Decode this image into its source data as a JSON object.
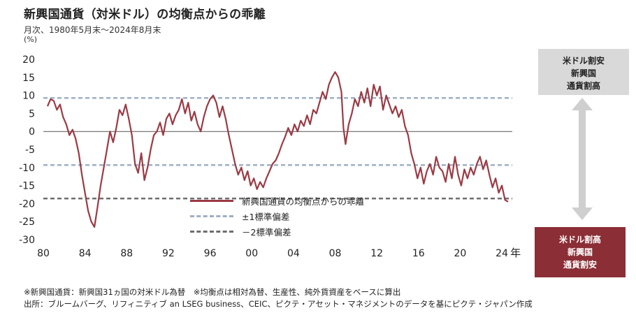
{
  "title": "新興国通貨（対米ドル）の均衡点からの乖離",
  "subtitle": "月次、1980年5月末～2024年8月末",
  "unit": "(%)",
  "legend": {
    "main": "新興国通貨の均衡点からの乖離",
    "sd1": "±1標準偏差",
    "sd2": "－2標準偏差"
  },
  "right_top": [
    "米ドル割安",
    "新興国",
    "通貨割高"
  ],
  "right_bottom": [
    "米ドル割高",
    "新興国",
    "通貨割安"
  ],
  "x_axis_suffix": "年",
  "footnotes": [
    "※新興国通貨：新興国31ヵ国の対米ドル為替　※均衡点は相対為替、生産性、純外貨資産をベースに算出",
    "出所：ブルームバーグ、リフィニティブ an LSEG business、CEIC、ピクテ・アセット・マネジメントのデータを基にピクテ・ジャパン作成"
  ],
  "colors": {
    "series": "#9b3a44",
    "sd1": "#9fb0c4",
    "sd2": "#6e6e6e",
    "top_box": "#d9d9d9",
    "bottom_box": "#8b2e36",
    "arrow": "#cfcfcf"
  },
  "chart_data": {
    "type": "line",
    "ylim": [
      -30,
      20
    ],
    "yticks": [
      20,
      15,
      10,
      5,
      0,
      -5,
      -10,
      -15,
      -20,
      -25,
      -30
    ],
    "xlim": [
      1980.0,
      2025.0
    ],
    "xticks": [
      {
        "value": 1980,
        "label": "80"
      },
      {
        "value": 1984,
        "label": "84"
      },
      {
        "value": 1988,
        "label": "88"
      },
      {
        "value": 1992,
        "label": "92"
      },
      {
        "value": 1996,
        "label": "96"
      },
      {
        "value": 2000,
        "label": "00"
      },
      {
        "value": 2004,
        "label": "04"
      },
      {
        "value": 2008,
        "label": "08"
      },
      {
        "value": 2012,
        "label": "12"
      },
      {
        "value": 2016,
        "label": "16"
      },
      {
        "value": 2020,
        "label": "20"
      },
      {
        "value": 2024,
        "label": "24"
      }
    ],
    "reference_lines": [
      {
        "name": "±1標準偏差",
        "y": 9.3
      },
      {
        "name": "±1標準偏差",
        "y": -9.3
      },
      {
        "name": "－2標準偏差",
        "y": -18.6
      }
    ],
    "series": [
      {
        "name": "新興国通貨の均衡点からの乖離",
        "x": [
          1980.4,
          1980.7,
          1981.0,
          1981.3,
          1981.6,
          1981.9,
          1982.2,
          1982.5,
          1982.8,
          1983.1,
          1983.4,
          1983.7,
          1984.0,
          1984.3,
          1984.6,
          1984.9,
          1985.2,
          1985.5,
          1985.8,
          1986.1,
          1986.4,
          1986.7,
          1987.0,
          1987.3,
          1987.6,
          1987.9,
          1988.2,
          1988.5,
          1988.8,
          1989.1,
          1989.4,
          1989.7,
          1990.0,
          1990.3,
          1990.6,
          1990.9,
          1991.2,
          1991.5,
          1991.8,
          1992.1,
          1992.4,
          1992.7,
          1993.0,
          1993.3,
          1993.6,
          1993.9,
          1994.2,
          1994.5,
          1994.8,
          1995.1,
          1995.4,
          1995.7,
          1996.0,
          1996.3,
          1996.6,
          1996.9,
          1997.2,
          1997.5,
          1997.8,
          1998.1,
          1998.4,
          1998.7,
          1999.0,
          1999.3,
          1999.6,
          1999.9,
          2000.2,
          2000.5,
          2000.8,
          2001.1,
          2001.4,
          2001.7,
          2002.0,
          2002.3,
          2002.6,
          2002.9,
          2003.2,
          2003.5,
          2003.8,
          2004.1,
          2004.4,
          2004.7,
          2005.0,
          2005.3,
          2005.6,
          2005.9,
          2006.2,
          2006.5,
          2006.8,
          2007.1,
          2007.4,
          2007.7,
          2008.0,
          2008.3,
          2008.6,
          2008.8,
          2009.0,
          2009.3,
          2009.6,
          2009.9,
          2010.2,
          2010.5,
          2010.8,
          2011.1,
          2011.4,
          2011.7,
          2012.0,
          2012.3,
          2012.6,
          2012.9,
          2013.2,
          2013.5,
          2013.8,
          2014.1,
          2014.4,
          2014.7,
          2015.0,
          2015.3,
          2015.6,
          2015.9,
          2016.2,
          2016.5,
          2016.8,
          2017.1,
          2017.4,
          2017.7,
          2018.0,
          2018.3,
          2018.6,
          2018.9,
          2019.2,
          2019.5,
          2019.8,
          2020.1,
          2020.4,
          2020.7,
          2021.0,
          2021.3,
          2021.6,
          2021.9,
          2022.2,
          2022.5,
          2022.8,
          2023.1,
          2023.4,
          2023.7,
          2024.0,
          2024.3,
          2024.6
        ],
        "values": [
          7.0,
          9.0,
          8.5,
          6.0,
          7.5,
          4.0,
          2.0,
          -1.0,
          0.5,
          -2.0,
          -6.0,
          -12.0,
          -17.0,
          -22.0,
          -25.0,
          -26.5,
          -21.0,
          -15.0,
          -10.0,
          -5.0,
          0.0,
          -3.0,
          1.0,
          6.0,
          4.5,
          7.5,
          3.5,
          -1.0,
          -9.0,
          -11.5,
          -6.0,
          -13.5,
          -10.0,
          -5.0,
          -1.0,
          0.0,
          2.5,
          -1.0,
          3.5,
          5.0,
          2.0,
          4.5,
          6.0,
          9.0,
          5.0,
          8.0,
          3.0,
          5.5,
          2.0,
          0.0,
          4.0,
          7.0,
          9.0,
          10.0,
          8.0,
          4.0,
          7.0,
          3.5,
          -1.0,
          -5.0,
          -9.0,
          -12.0,
          -10.0,
          -13.5,
          -11.0,
          -15.0,
          -13.0,
          -16.0,
          -14.0,
          -15.5,
          -13.0,
          -11.0,
          -9.0,
          -8.0,
          -6.0,
          -3.5,
          -1.5,
          1.0,
          -1.0,
          2.0,
          0.0,
          3.0,
          1.5,
          4.5,
          2.0,
          6.0,
          5.0,
          8.0,
          11.0,
          9.0,
          13.0,
          15.0,
          16.5,
          15.0,
          11.0,
          1.0,
          -3.5,
          2.0,
          5.0,
          9.0,
          7.0,
          11.0,
          8.0,
          12.0,
          7.0,
          13.0,
          10.0,
          12.5,
          6.0,
          10.0,
          7.5,
          5.0,
          7.0,
          4.0,
          6.0,
          1.5,
          -1.0,
          -6.0,
          -9.0,
          -13.0,
          -10.0,
          -14.5,
          -11.0,
          -9.0,
          -12.0,
          -7.0,
          -10.0,
          -11.0,
          -14.0,
          -9.0,
          -13.0,
          -7.0,
          -12.0,
          -15.0,
          -10.5,
          -13.0,
          -10.0,
          -12.0,
          -9.0,
          -7.0,
          -10.5,
          -8.0,
          -12.0,
          -15.5,
          -13.0,
          -17.0,
          -15.0,
          -19.0,
          -19.5
        ]
      }
    ]
  }
}
